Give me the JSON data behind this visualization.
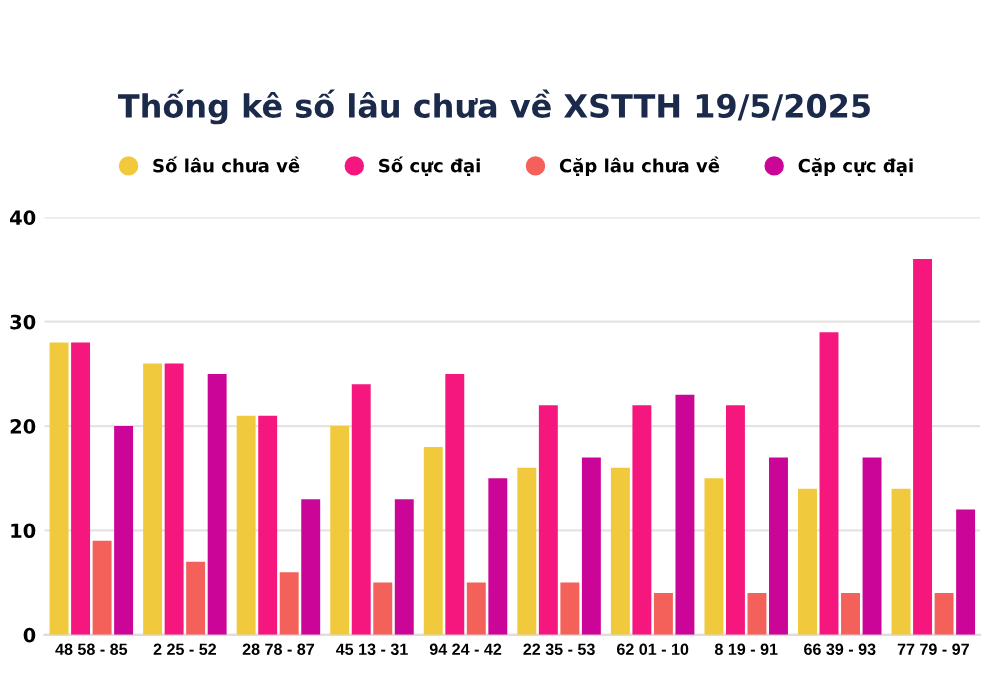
{
  "chart_data": {
    "type": "bar",
    "title": "Thống kê số lâu chưa về XSTTH 19/5/2025",
    "categories": [
      "48 58 - 85",
      "2 25 - 52",
      "28 78 - 87",
      "45 13 - 31",
      "94 24 - 42",
      "22 35 - 53",
      "62 01 - 10",
      "8 19 - 91",
      "66 39 - 93",
      "77 79 - 97"
    ],
    "series": [
      {
        "name": "Số lâu chưa về",
        "color": "#f0c93c",
        "values": [
          28,
          26,
          21,
          20,
          18,
          16,
          16,
          15,
          14,
          14
        ]
      },
      {
        "name": "Số cực đại",
        "color": "#f5177e",
        "values": [
          28,
          26,
          21,
          24,
          25,
          22,
          22,
          22,
          29,
          36
        ]
      },
      {
        "name": "Cặp lâu chưa về",
        "color": "#f4605a",
        "values": [
          9,
          7,
          6,
          5,
          5,
          5,
          4,
          4,
          4,
          4
        ]
      },
      {
        "name": "Cặp cực đại",
        "color": "#cc0599",
        "values": [
          20,
          25,
          13,
          13,
          15,
          17,
          23,
          17,
          17,
          12
        ]
      }
    ],
    "ylim": [
      0,
      40
    ],
    "yticks": [
      0,
      10,
      20,
      30,
      40
    ],
    "grid": "y",
    "legend": "top"
  }
}
